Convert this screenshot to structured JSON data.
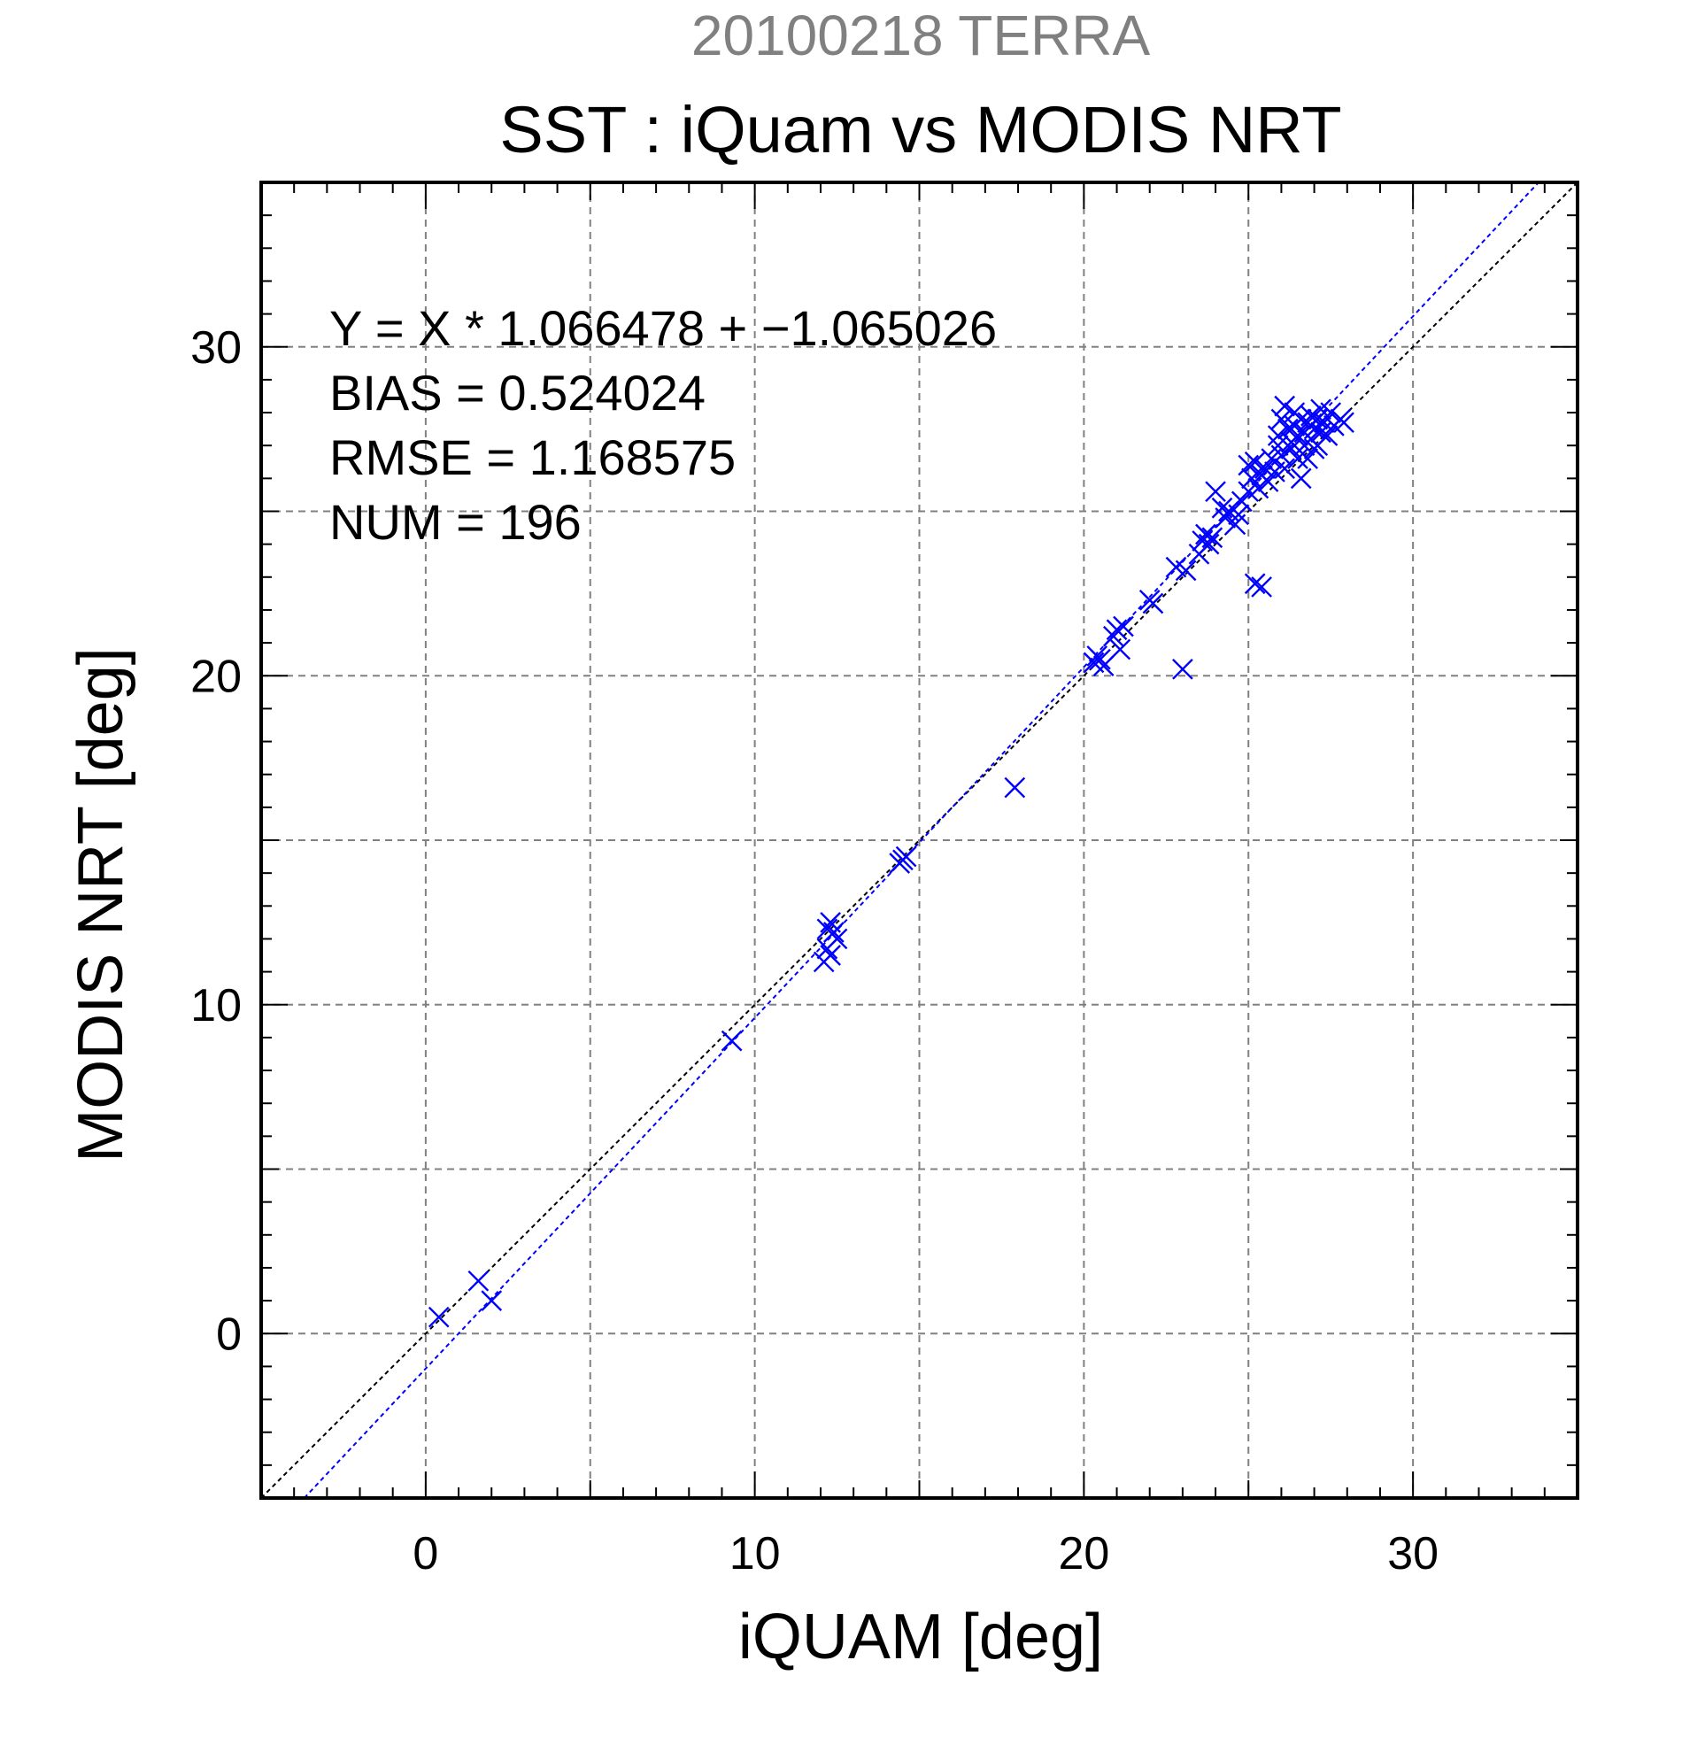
{
  "chart_data": {
    "type": "scatter",
    "supertitle": "20100218 TERRA",
    "title": "SST : iQuam vs MODIS NRT",
    "xlabel": "iQUAM [deg]",
    "ylabel": "MODIS NRT [deg]",
    "xlim": [
      -5,
      35
    ],
    "ylim": [
      -5,
      35
    ],
    "major_ticks": [
      0,
      10,
      20,
      30
    ],
    "tick_labels": [
      "0",
      "10",
      "20",
      "30"
    ],
    "gridlines": [
      0,
      5,
      10,
      15,
      20,
      25,
      30
    ],
    "grid": true,
    "stats": [
      "Y = X * 1.066478 + −1.065026",
      "BIAS = 0.524024",
      "RMSE = 1.168575",
      "NUM = 196"
    ],
    "marker_color": "#0000ff",
    "reference_line": {
      "slope": 1,
      "intercept": 0,
      "color": "#000000"
    },
    "fit_line": {
      "slope": 1.066478,
      "intercept": -1.065026,
      "color": "#0000ff"
    },
    "points": [
      [
        0.4,
        0.5
      ],
      [
        1.6,
        1.6
      ],
      [
        2.0,
        1.0
      ],
      [
        9.3,
        8.9
      ],
      [
        12.1,
        11.3
      ],
      [
        12.2,
        11.7
      ],
      [
        12.3,
        11.5
      ],
      [
        12.2,
        12.3
      ],
      [
        12.3,
        12.5
      ],
      [
        12.4,
        12.2
      ],
      [
        12.5,
        12.0
      ],
      [
        14.4,
        14.3
      ],
      [
        14.6,
        14.5
      ],
      [
        14.5,
        14.4
      ],
      [
        17.9,
        16.6
      ],
      [
        20.3,
        20.4
      ],
      [
        20.5,
        20.5
      ],
      [
        20.6,
        20.3
      ],
      [
        20.4,
        20.6
      ],
      [
        20.9,
        21.2
      ],
      [
        21.0,
        21.4
      ],
      [
        21.1,
        20.8
      ],
      [
        21.2,
        21.5
      ],
      [
        22.0,
        22.3
      ],
      [
        22.1,
        22.2
      ],
      [
        22.8,
        23.3
      ],
      [
        23.1,
        23.2
      ],
      [
        23.0,
        20.2
      ],
      [
        23.5,
        23.7
      ],
      [
        23.6,
        24.1
      ],
      [
        23.7,
        24.3
      ],
      [
        23.8,
        24.0
      ],
      [
        23.9,
        24.2
      ],
      [
        24.0,
        25.6
      ],
      [
        24.2,
        25.1
      ],
      [
        24.3,
        24.8
      ],
      [
        24.4,
        25.0
      ],
      [
        24.6,
        24.6
      ],
      [
        24.7,
        24.9
      ],
      [
        24.8,
        25.3
      ],
      [
        25.0,
        25.6
      ],
      [
        25.1,
        26.0
      ],
      [
        25.0,
        26.4
      ],
      [
        25.2,
        26.5
      ],
      [
        25.2,
        22.8
      ],
      [
        25.4,
        22.7
      ],
      [
        25.3,
        25.7
      ],
      [
        25.4,
        26.1
      ],
      [
        25.5,
        26.3
      ],
      [
        25.6,
        25.9
      ],
      [
        25.7,
        26.6
      ],
      [
        25.8,
        26.2
      ],
      [
        25.9,
        27.0
      ],
      [
        25.9,
        27.3
      ],
      [
        26.0,
        26.7
      ],
      [
        26.0,
        27.8
      ],
      [
        26.1,
        28.2
      ],
      [
        26.1,
        26.3
      ],
      [
        26.2,
        27.5
      ],
      [
        26.3,
        27.1
      ],
      [
        26.3,
        26.9
      ],
      [
        26.4,
        27.6
      ],
      [
        26.4,
        28.0
      ],
      [
        26.5,
        27.3
      ],
      [
        26.5,
        26.6
      ],
      [
        26.6,
        27.8
      ],
      [
        26.6,
        26.0
      ],
      [
        26.7,
        27.4
      ],
      [
        26.7,
        27.0
      ],
      [
        26.8,
        27.7
      ],
      [
        26.8,
        26.6
      ],
      [
        26.9,
        27.9
      ],
      [
        26.9,
        27.2
      ],
      [
        27.0,
        27.5
      ],
      [
        27.0,
        26.9
      ],
      [
        27.1,
        27.8
      ],
      [
        27.1,
        27.0
      ],
      [
        27.2,
        28.1
      ],
      [
        27.2,
        27.4
      ],
      [
        27.3,
        27.7
      ],
      [
        27.4,
        27.3
      ],
      [
        27.5,
        28.0
      ],
      [
        27.6,
        27.6
      ],
      [
        27.8,
        27.8
      ],
      [
        27.9,
        27.7
      ]
    ]
  }
}
